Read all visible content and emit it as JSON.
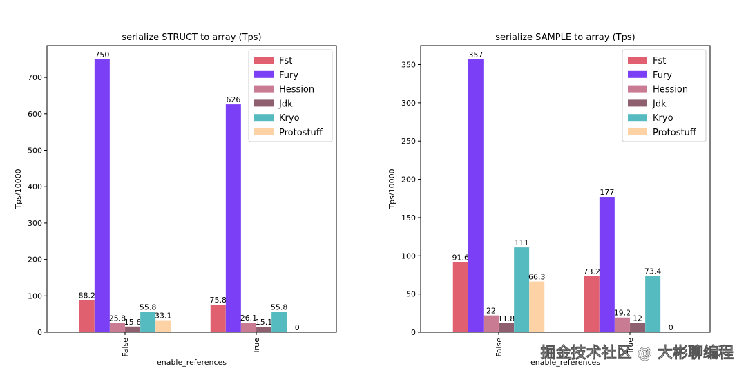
{
  "chart_data": [
    {
      "type": "bar",
      "title": "serialize STRUCT to array (Tps)",
      "xlabel": "enable_references",
      "ylabel": "Tps/10000",
      "categories": [
        "False",
        "True"
      ],
      "ylim": [
        0,
        787.5
      ],
      "yticks": [
        0,
        100,
        200,
        300,
        400,
        500,
        600,
        700
      ],
      "legend_position": "top-right",
      "series": [
        {
          "name": "Fst",
          "color": "#e06070",
          "values": [
            88.2,
            75.8
          ],
          "labels": [
            "88.2",
            "75.8"
          ]
        },
        {
          "name": "Fury",
          "color": "#7b3ff5",
          "values": [
            750,
            626
          ],
          "labels": [
            "750",
            "626"
          ]
        },
        {
          "name": "Hession",
          "color": "#c97b94",
          "values": [
            25.8,
            26.1
          ],
          "labels": [
            "25.8",
            "26.1"
          ]
        },
        {
          "name": "Jdk",
          "color": "#8e5f6e",
          "values": [
            15.6,
            15.1
          ],
          "labels": [
            "15.6",
            "15.1"
          ]
        },
        {
          "name": "Kryo",
          "color": "#56bac1",
          "values": [
            55.8,
            55.8
          ],
          "labels": [
            "55.8",
            "55.8"
          ]
        },
        {
          "name": "Protostuff",
          "color": "#fdd2a4",
          "values": [
            33.1,
            0
          ],
          "labels": [
            "33.1",
            "0"
          ]
        }
      ]
    },
    {
      "type": "bar",
      "title": "serialize SAMPLE to array (Tps)",
      "xlabel": "enable_references",
      "ylabel": "Tps/10000",
      "categories": [
        "False",
        "True"
      ],
      "ylim": [
        0,
        374.85
      ],
      "yticks": [
        0,
        50,
        100,
        150,
        200,
        250,
        300,
        350
      ],
      "legend_position": "top-right",
      "series": [
        {
          "name": "Fst",
          "color": "#e06070",
          "values": [
            91.6,
            73.2
          ],
          "labels": [
            "91.6",
            "73.2"
          ]
        },
        {
          "name": "Fury",
          "color": "#7b3ff5",
          "values": [
            357,
            177
          ],
          "labels": [
            "357",
            "177"
          ]
        },
        {
          "name": "Hession",
          "color": "#c97b94",
          "values": [
            22,
            19.2
          ],
          "labels": [
            "22",
            "19.2"
          ]
        },
        {
          "name": "Jdk",
          "color": "#8e5f6e",
          "values": [
            11.8,
            12
          ],
          "labels": [
            "11.8",
            "12"
          ]
        },
        {
          "name": "Kryo",
          "color": "#56bac1",
          "values": [
            111,
            73.4
          ],
          "labels": [
            "111",
            "73.4"
          ]
        },
        {
          "name": "Protostuff",
          "color": "#fdd2a4",
          "values": [
            66.3,
            0
          ],
          "labels": [
            "66.3",
            "0"
          ]
        }
      ]
    }
  ],
  "watermark": "掘金技术社区 @ 大彬聊编程"
}
